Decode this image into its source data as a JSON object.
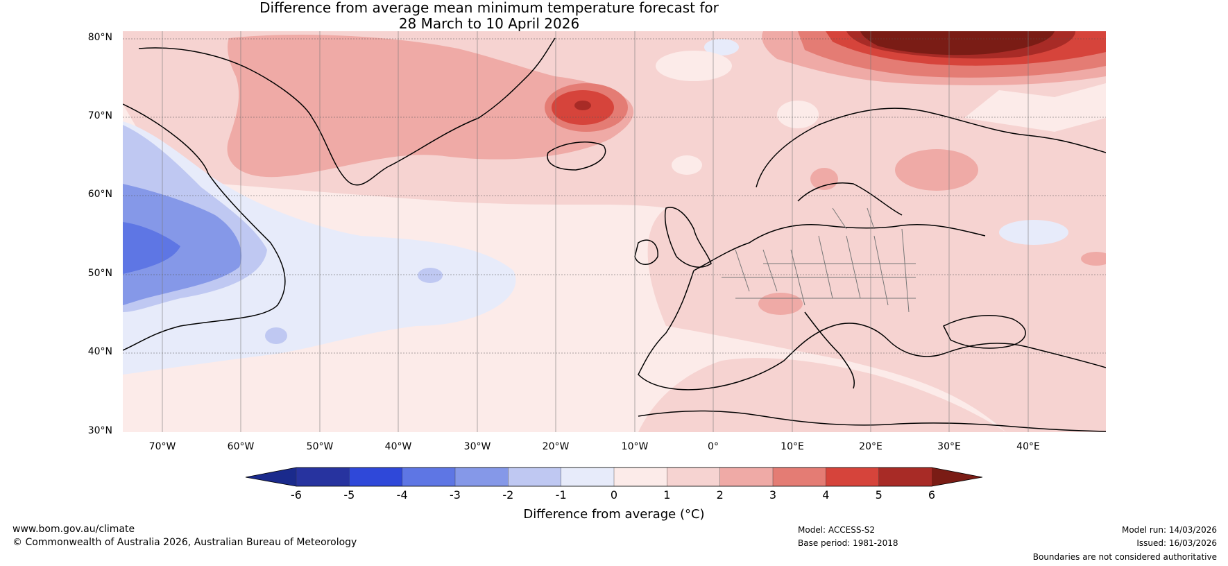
{
  "title": {
    "line1": "Difference from average mean minimum temperature forecast for",
    "line2": "28 March to 10 April 2026"
  },
  "latitude_labels": [
    "80°N",
    "70°N",
    "60°N",
    "50°N",
    "40°N",
    "30°N"
  ],
  "longitude_labels": [
    "70°W",
    "60°W",
    "50°W",
    "40°W",
    "30°W",
    "20°W",
    "10°W",
    "0°",
    "10°E",
    "20°E",
    "30°E",
    "40°E"
  ],
  "colorbar": {
    "tick_labels": [
      "-6",
      "-5",
      "-4",
      "-3",
      "-2",
      "-1",
      "0",
      "1",
      "2",
      "3",
      "4",
      "5",
      "6"
    ],
    "colors": [
      "#27339f",
      "#2f48d9",
      "#5e76e4",
      "#8598e8",
      "#bfc8f2",
      "#e7ebfa",
      "#fcebe9",
      "#f6d3d1",
      "#efaaa6",
      "#e47c74",
      "#d6443b",
      "#a82b26"
    ],
    "under_color": "#1a2a8c",
    "over_color": "#7a1c15",
    "label": "Difference from average (°C)"
  },
  "footer": {
    "website": "www.bom.gov.au/climate",
    "copyright": "© Commonwealth of Australia 2026, Australian Bureau of Meteorology",
    "model": "Model: ACCESS-S2",
    "base_period": "Base period: 1981-2018",
    "model_run": "Model run: 14/03/2026",
    "issued": "Issued: 16/03/2026",
    "disclaimer": "Boundaries are not considered authoritative"
  }
}
